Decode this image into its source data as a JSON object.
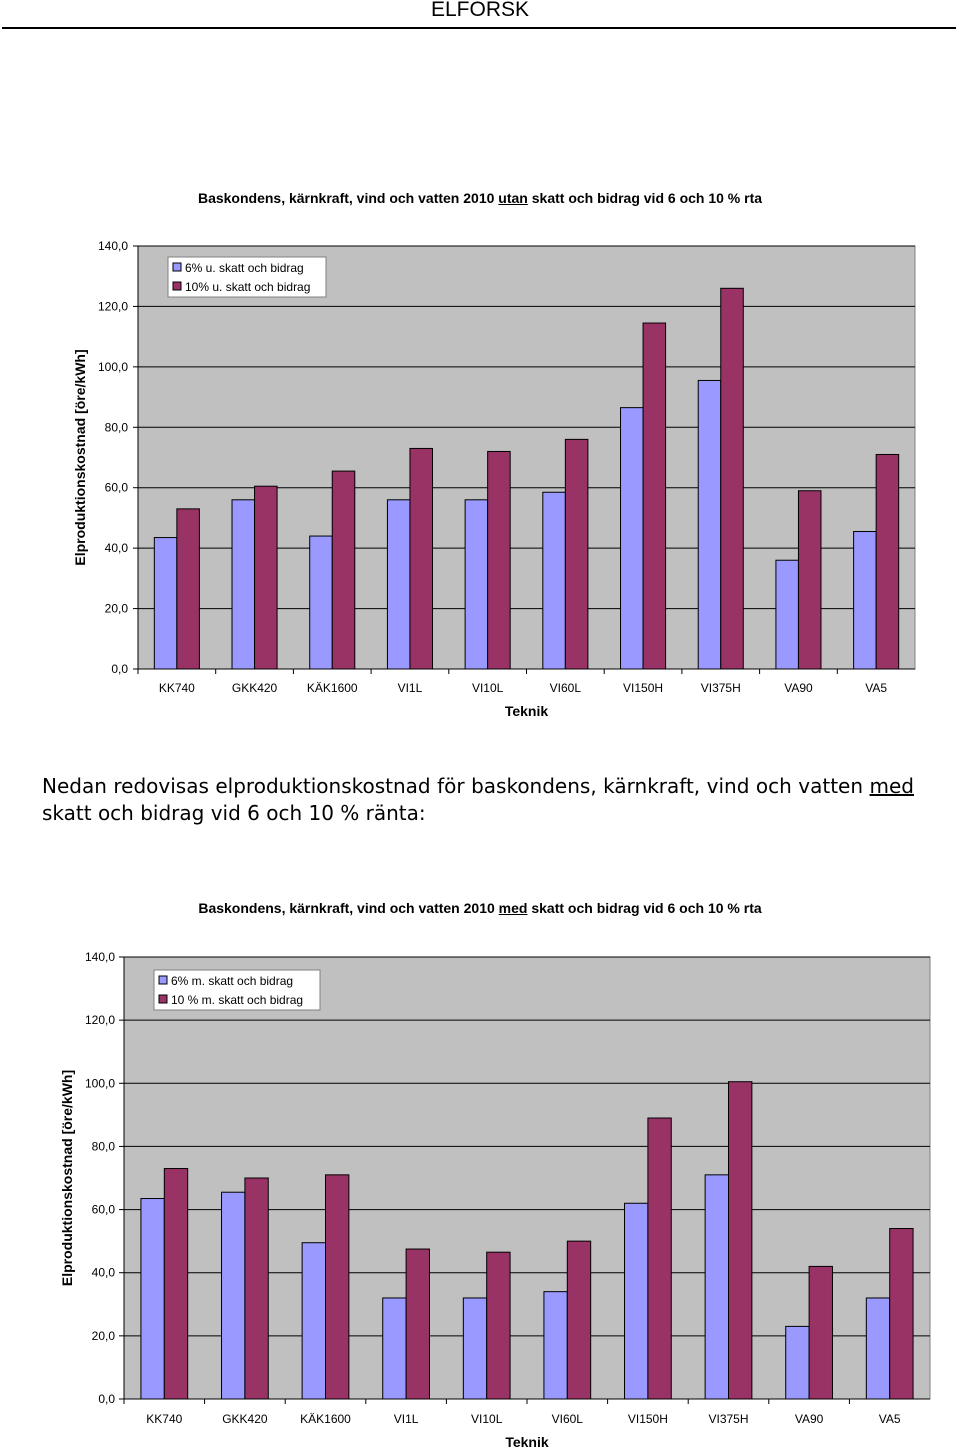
{
  "header": {
    "title": "ELFORSK"
  },
  "charts": [
    {
      "title_pre": "Baskondens, kärnkraft, vind och vatten 2010 ",
      "title_emph": "utan",
      "title_post": " skatt och bidrag vid 6 och 10 % rta",
      "colors": [
        "#9999ff",
        "#993366"
      ]
    },
    {
      "title_pre": "Baskondens, kärnkraft, vind och vatten 2010 ",
      "title_emph": "med",
      "title_post": " skatt och bidrag vid 6 och 10 % rta",
      "colors": [
        "#9999ff",
        "#993366"
      ]
    }
  ],
  "paragraph": {
    "pre": "Nedan redovisas elproduktionskostnad för baskondens, kärnkraft, vind och vatten ",
    "emph": "med",
    "post": " skatt och bidrag vid 6 och 10 % ränta:"
  },
  "chart_data": [
    {
      "type": "bar",
      "title": "Baskondens, kärnkraft, vind och vatten 2010 utan skatt och bidrag vid 6 och 10 % rta",
      "xlabel": "Teknik",
      "ylabel": "Elproduktionskostnad [öre/kWh]",
      "ylim": [
        0,
        140
      ],
      "yticks": [
        "0,0",
        "20,0",
        "40,0",
        "60,0",
        "80,0",
        "100,0",
        "120,0",
        "140,0"
      ],
      "categories": [
        "KK740",
        "GKK420",
        "KÄK1600",
        "VI1L",
        "VI10L",
        "VI60L",
        "VI150H",
        "VI375H",
        "VA90",
        "VA5"
      ],
      "series": [
        {
          "name": "6% u. skatt och bidrag",
          "values": [
            43.5,
            56,
            44,
            56,
            56,
            58.5,
            86.5,
            95.5,
            36,
            45.5
          ]
        },
        {
          "name": "10% u. skatt och bidrag",
          "values": [
            53,
            60.5,
            65.5,
            73,
            72,
            76,
            114.5,
            126,
            59,
            71
          ]
        }
      ],
      "legend": "top-left",
      "grid": true
    },
    {
      "type": "bar",
      "title": "Baskondens, kärnkraft, vind och vatten 2010 med skatt och bidrag vid 6 och 10 % rta",
      "xlabel": "Teknik",
      "ylabel": "Elproduktionskostnad [öre/kWh]",
      "ylim": [
        0,
        140
      ],
      "yticks": [
        "0,0",
        "20,0",
        "40,0",
        "60,0",
        "80,0",
        "100,0",
        "120,0",
        "140,0"
      ],
      "categories": [
        "KK740",
        "GKK420",
        "KÄK1600",
        "VI1L",
        "VI10L",
        "VI60L",
        "VI150H",
        "VI375H",
        "VA90",
        "VA5"
      ],
      "series": [
        {
          "name": "6% m. skatt och bidrag",
          "values": [
            63.5,
            65.5,
            49.5,
            32,
            32,
            34,
            62,
            71,
            23,
            32
          ]
        },
        {
          "name": "10 % m. skatt och bidrag",
          "values": [
            73,
            70,
            71,
            47.5,
            46.5,
            50,
            89,
            100.5,
            42,
            54
          ]
        }
      ],
      "legend": "top-left",
      "grid": true
    }
  ]
}
